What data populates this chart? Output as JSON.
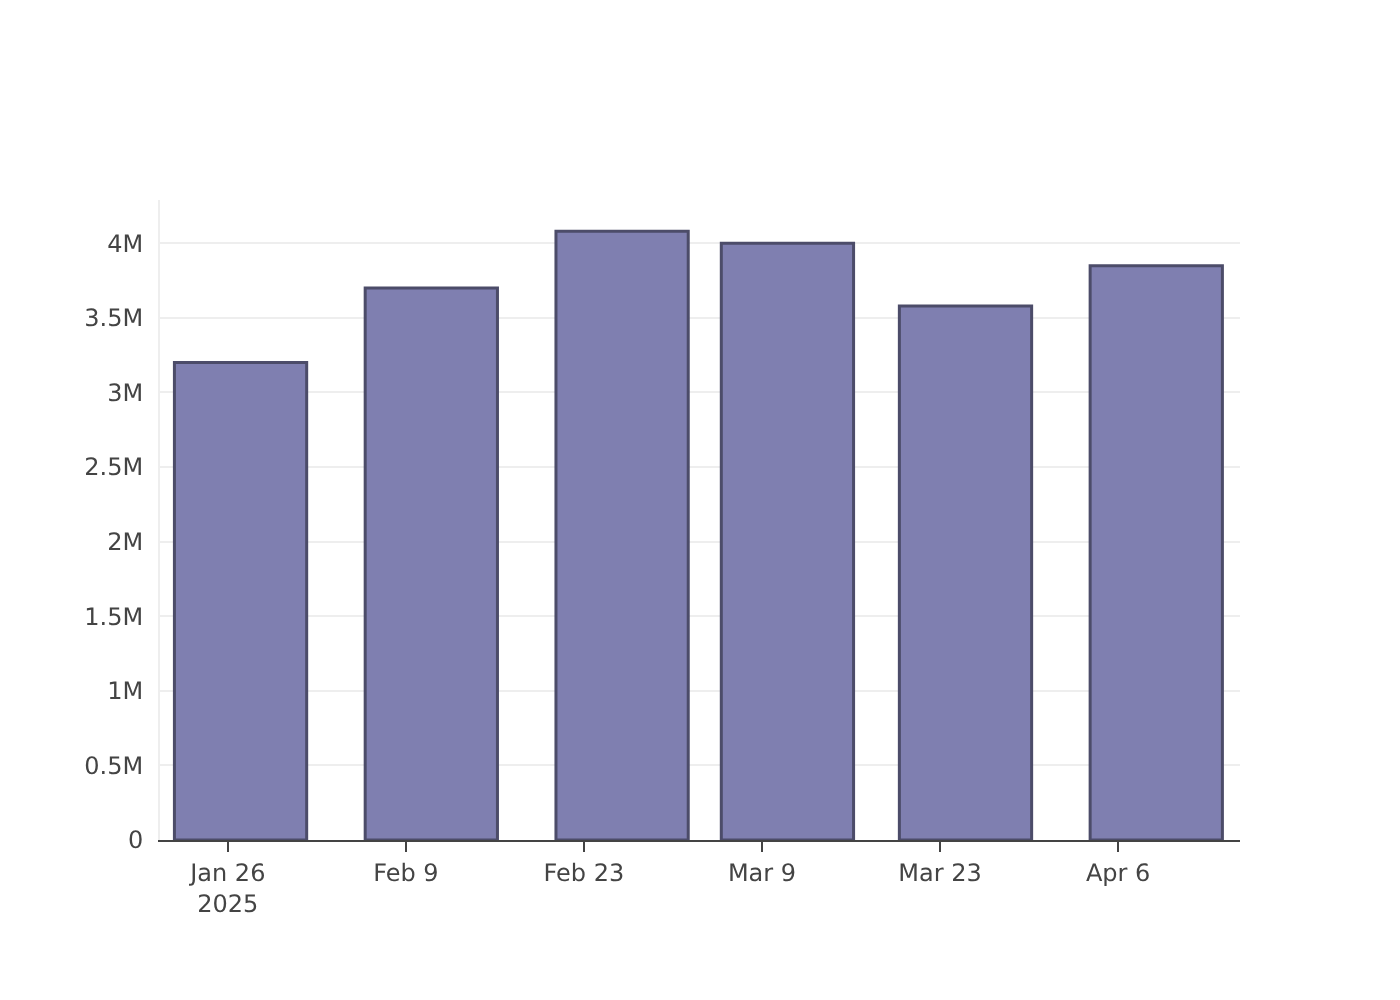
{
  "chart_data": {
    "type": "bar",
    "x": [
      "2025-01-27",
      "2025-02-11",
      "2025-02-26",
      "2025-03-11",
      "2025-03-25",
      "2025-04-09"
    ],
    "values": [
      3200000,
      3700000,
      4080000,
      4000000,
      3580000,
      3850000
    ],
    "color": "#7f7fb0",
    "xlim": [
      "2025-01-20T16:00",
      "2025-04-15T14:00"
    ],
    "xticks": [
      {
        "value": "2025-01-26",
        "label": "Jan 26\n2025"
      },
      {
        "value": "2025-02-09",
        "label": "Feb 9"
      },
      {
        "value": "2025-02-23",
        "label": "Feb 23"
      },
      {
        "value": "2025-03-09",
        "label": "Mar 9"
      },
      {
        "value": "2025-03-23",
        "label": "Mar 23"
      },
      {
        "value": "2025-04-06",
        "label": "Apr 6"
      }
    ],
    "yticks": [
      0,
      {
        "value": 500000,
        "label": "0.5M"
      },
      {
        "value": 1000000,
        "label": "1M"
      },
      {
        "value": 1500000,
        "label": "1.5M"
      },
      {
        "value": 2000000,
        "label": "2M"
      },
      {
        "value": 2500000,
        "label": "2.5M"
      },
      {
        "value": 3000000,
        "label": "3M"
      },
      {
        "value": 3500000,
        "label": "3.5M"
      },
      {
        "value": 4000000,
        "label": "4M"
      }
    ],
    "ylim": [
      0,
      4290000
    ],
    "grid": "y",
    "legend": false
  }
}
